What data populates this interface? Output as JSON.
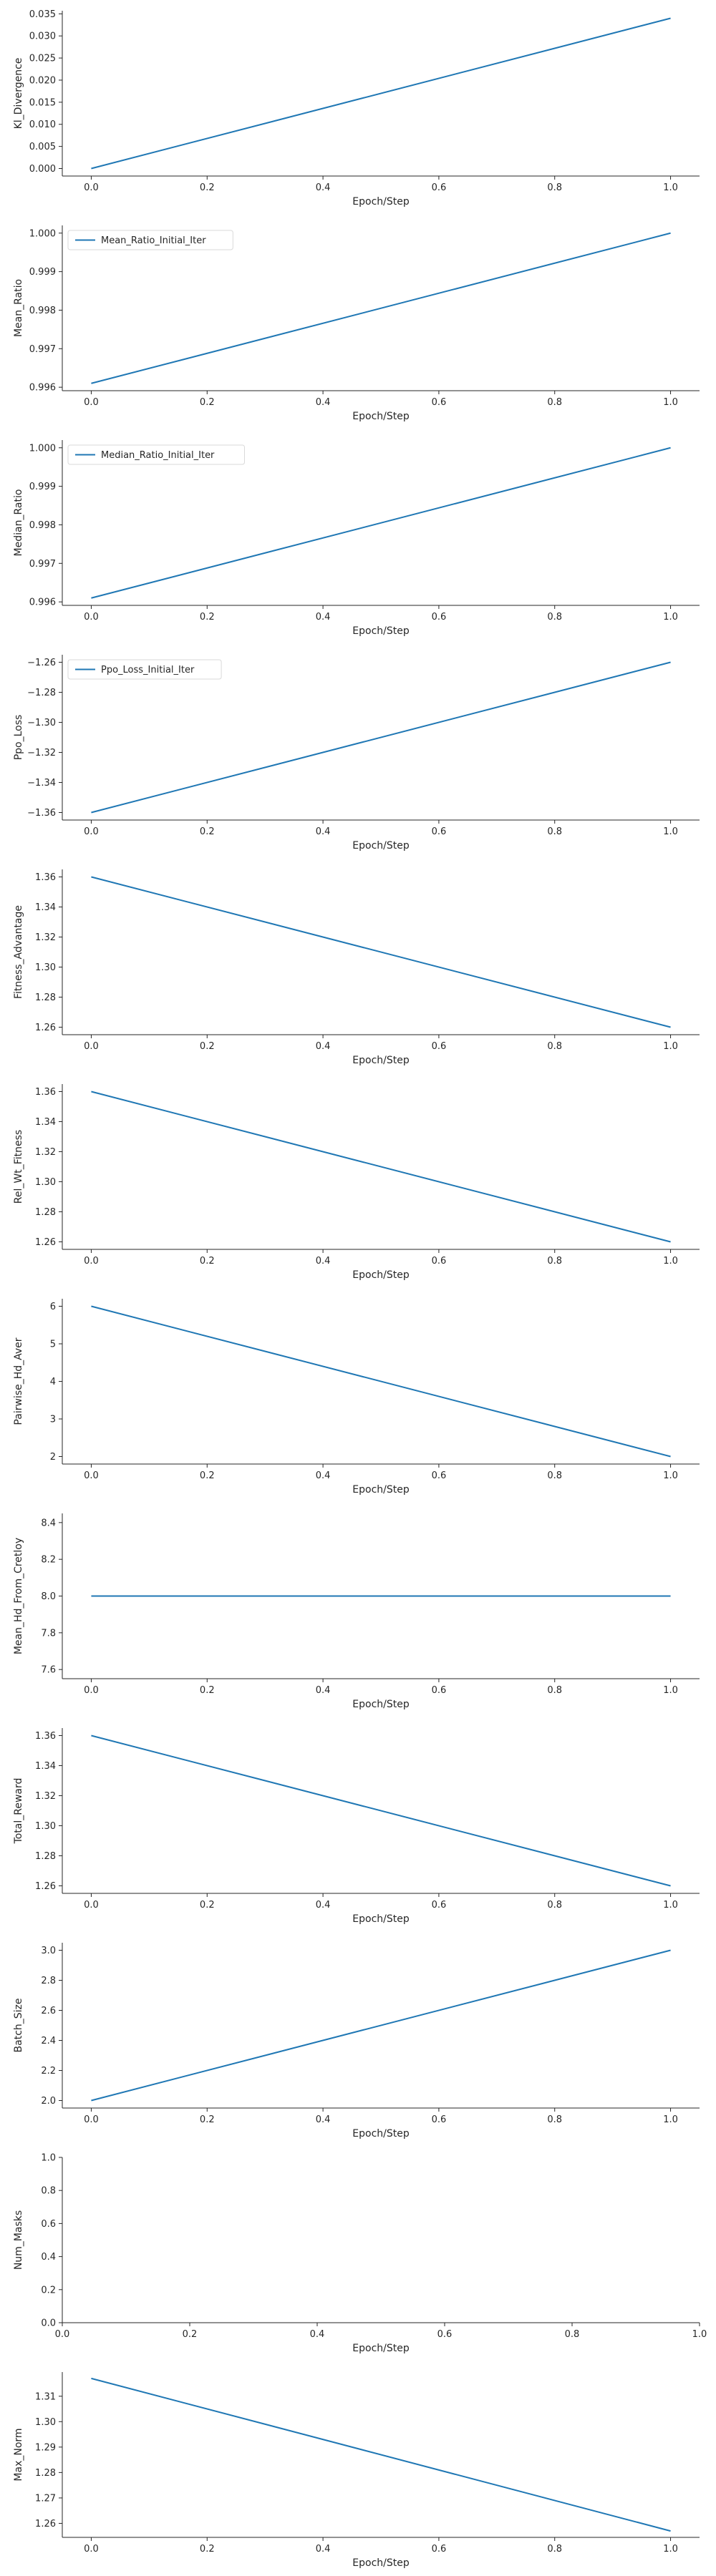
{
  "colors": {
    "series": "#1f77b4",
    "axis": "#262626",
    "text": "#262626"
  },
  "chart_data": [
    {
      "type": "line",
      "ylabel": "Kl_Divergence",
      "xlabel": "Epoch/Step",
      "xlim": [
        -0.05,
        1.05
      ],
      "ylim": [
        -0.0017,
        0.0357
      ],
      "xticks": [
        "0.0",
        "0.2",
        "0.4",
        "0.6",
        "0.8",
        "1.0"
      ],
      "yticks": [
        "0.000",
        "0.005",
        "0.010",
        "0.015",
        "0.020",
        "0.025",
        "0.030",
        "0.035"
      ],
      "legend": null,
      "grid": false,
      "series": [
        {
          "x": [
            0.0,
            1.0
          ],
          "y": [
            0.0,
            0.034
          ]
        }
      ]
    },
    {
      "type": "line",
      "ylabel": "Mean_Ratio",
      "xlabel": "Epoch/Step",
      "xlim": [
        -0.05,
        1.05
      ],
      "ylim": [
        0.99591,
        1.0002
      ],
      "xticks": [
        "0.0",
        "0.2",
        "0.4",
        "0.6",
        "0.8",
        "1.0"
      ],
      "yticks": [
        "0.996",
        "0.997",
        "0.998",
        "0.999",
        "1.000"
      ],
      "legend": "upper-left",
      "grid": false,
      "series": [
        {
          "name": "Mean_Ratio_Initial_Iter",
          "x": [
            0.0,
            1.0
          ],
          "y": [
            0.9961,
            1.0
          ]
        }
      ]
    },
    {
      "type": "line",
      "ylabel": "Median_Ratio",
      "xlabel": "Epoch/Step",
      "xlim": [
        -0.05,
        1.05
      ],
      "ylim": [
        0.99591,
        1.0002
      ],
      "xticks": [
        "0.0",
        "0.2",
        "0.4",
        "0.6",
        "0.8",
        "1.0"
      ],
      "yticks": [
        "0.996",
        "0.997",
        "0.998",
        "0.999",
        "1.000"
      ],
      "legend": "upper-left",
      "grid": false,
      "series": [
        {
          "name": "Median_Ratio_Initial_Iter",
          "x": [
            0.0,
            1.0
          ],
          "y": [
            0.9961,
            1.0
          ]
        }
      ]
    },
    {
      "type": "line",
      "ylabel": "Ppo_Loss",
      "xlabel": "Epoch/Step",
      "xlim": [
        -0.05,
        1.05
      ],
      "ylim": [
        -1.365,
        -1.255
      ],
      "xticks": [
        "0.0",
        "0.2",
        "0.4",
        "0.6",
        "0.8",
        "1.0"
      ],
      "yticks": [
        "−1.36",
        "−1.34",
        "−1.32",
        "−1.30",
        "−1.28",
        "−1.26"
      ],
      "legend": "upper-left",
      "grid": false,
      "series": [
        {
          "name": "Ppo_Loss_Initial_Iter",
          "x": [
            0.0,
            1.0
          ],
          "y": [
            -1.36,
            -1.26
          ]
        }
      ]
    },
    {
      "type": "line",
      "ylabel": "Fitness_Advantage",
      "xlabel": "Epoch/Step",
      "xlim": [
        -0.05,
        1.05
      ],
      "ylim": [
        1.255,
        1.365
      ],
      "xticks": [
        "0.0",
        "0.2",
        "0.4",
        "0.6",
        "0.8",
        "1.0"
      ],
      "yticks": [
        "1.26",
        "1.28",
        "1.30",
        "1.32",
        "1.34",
        "1.36"
      ],
      "legend": null,
      "grid": false,
      "series": [
        {
          "x": [
            0.0,
            1.0
          ],
          "y": [
            1.36,
            1.26
          ]
        }
      ]
    },
    {
      "type": "line",
      "ylabel": "Rel_Wt_Fitness",
      "xlabel": "Epoch/Step",
      "xlim": [
        -0.05,
        1.05
      ],
      "ylim": [
        1.255,
        1.365
      ],
      "xticks": [
        "0.0",
        "0.2",
        "0.4",
        "0.6",
        "0.8",
        "1.0"
      ],
      "yticks": [
        "1.26",
        "1.28",
        "1.30",
        "1.32",
        "1.34",
        "1.36"
      ],
      "legend": null,
      "grid": false,
      "series": [
        {
          "x": [
            0.0,
            1.0
          ],
          "y": [
            1.36,
            1.26
          ]
        }
      ]
    },
    {
      "type": "line",
      "ylabel": "Pairwise_Hd_Aver",
      "xlabel": "Epoch/Step",
      "xlim": [
        -0.05,
        1.05
      ],
      "ylim": [
        1.8,
        6.2
      ],
      "xticks": [
        "0.0",
        "0.2",
        "0.4",
        "0.6",
        "0.8",
        "1.0"
      ],
      "yticks": [
        "2",
        "3",
        "4",
        "5",
        "6"
      ],
      "legend": null,
      "grid": false,
      "series": [
        {
          "x": [
            0.0,
            1.0
          ],
          "y": [
            6.0,
            2.0
          ]
        }
      ]
    },
    {
      "type": "line",
      "ylabel": "Mean_Hd_From_Cretloy",
      "xlabel": "Epoch/Step",
      "xlim": [
        -0.05,
        1.05
      ],
      "ylim": [
        7.55,
        8.45
      ],
      "xticks": [
        "0.0",
        "0.2",
        "0.4",
        "0.6",
        "0.8",
        "1.0"
      ],
      "yticks": [
        "7.6",
        "7.8",
        "8.0",
        "8.2",
        "8.4"
      ],
      "legend": null,
      "grid": false,
      "series": [
        {
          "x": [
            0.0,
            1.0
          ],
          "y": [
            8.0,
            8.0
          ]
        }
      ]
    },
    {
      "type": "line",
      "ylabel": "Total_Reward",
      "xlabel": "Epoch/Step",
      "xlim": [
        -0.05,
        1.05
      ],
      "ylim": [
        1.255,
        1.365
      ],
      "xticks": [
        "0.0",
        "0.2",
        "0.4",
        "0.6",
        "0.8",
        "1.0"
      ],
      "yticks": [
        "1.26",
        "1.28",
        "1.30",
        "1.32",
        "1.34",
        "1.36"
      ],
      "legend": null,
      "grid": false,
      "series": [
        {
          "x": [
            0.0,
            1.0
          ],
          "y": [
            1.36,
            1.26
          ]
        }
      ]
    },
    {
      "type": "line",
      "ylabel": "Batch_Size",
      "xlabel": "Epoch/Step",
      "xlim": [
        -0.05,
        1.05
      ],
      "ylim": [
        1.95,
        3.05
      ],
      "xticks": [
        "0.0",
        "0.2",
        "0.4",
        "0.6",
        "0.8",
        "1.0"
      ],
      "yticks": [
        "2.0",
        "2.2",
        "2.4",
        "2.6",
        "2.8",
        "3.0"
      ],
      "legend": null,
      "grid": false,
      "series": [
        {
          "x": [
            0.0,
            1.0
          ],
          "y": [
            2.0,
            3.0
          ]
        }
      ]
    },
    {
      "type": "line",
      "ylabel": "Num_Masks",
      "xlabel": "Epoch/Step",
      "xlim": [
        0.0,
        1.0
      ],
      "ylim": [
        0.0,
        1.0
      ],
      "xticks": [
        "0.0",
        "0.2",
        "0.4",
        "0.6",
        "0.8",
        "1.0"
      ],
      "yticks": [
        "0.0",
        "0.2",
        "0.4",
        "0.6",
        "0.8",
        "1.0"
      ],
      "legend": null,
      "grid": false,
      "series": []
    },
    {
      "type": "line",
      "ylabel": "Max_Norm",
      "xlabel": "Epoch/Step",
      "xlim": [
        -0.05,
        1.05
      ],
      "ylim": [
        1.2545,
        1.3195
      ],
      "xticks": [
        "0.0",
        "0.2",
        "0.4",
        "0.6",
        "0.8",
        "1.0"
      ],
      "yticks": [
        "1.26",
        "1.27",
        "1.28",
        "1.29",
        "1.30",
        "1.31"
      ],
      "legend": null,
      "grid": false,
      "series": [
        {
          "x": [
            0.0,
            1.0
          ],
          "y": [
            1.317,
            1.257
          ]
        }
      ]
    }
  ]
}
